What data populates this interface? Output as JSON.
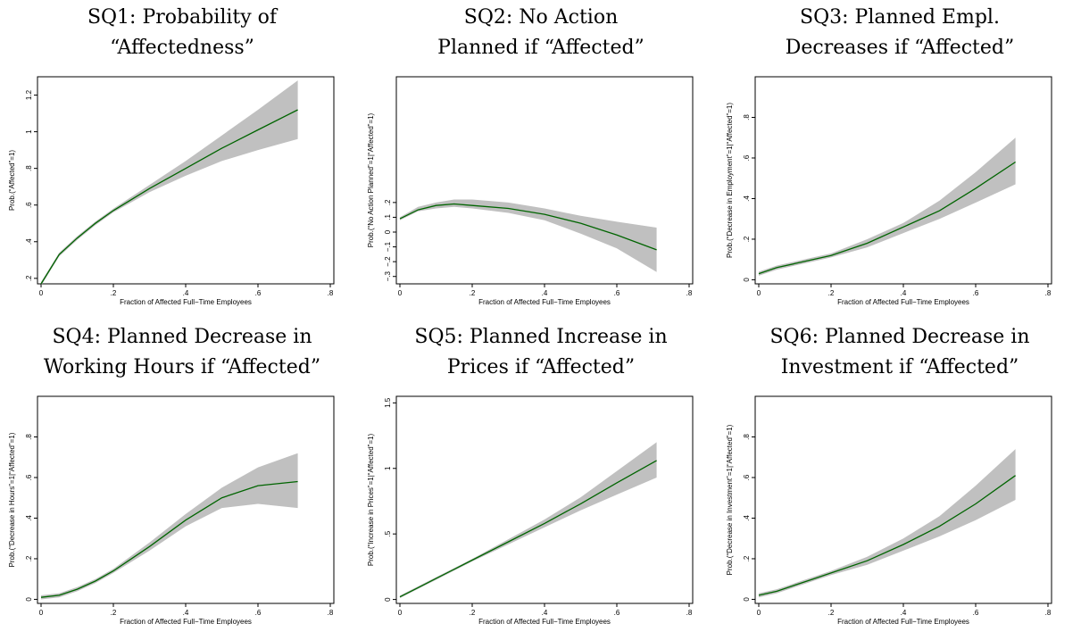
{
  "chart_data": [
    {
      "type": "line",
      "title_line1": "SQ1: Probability of",
      "title_line2": "“Affectedness”",
      "xlabel": "Fraction of Affected Full−Time Employees",
      "ylabel": "Prob.(“Affected”=1)",
      "xlim": [
        0,
        0.8
      ],
      "ylim": [
        0.17,
        1.3
      ],
      "xticks": [
        0,
        0.2,
        0.4,
        0.6,
        0.8
      ],
      "xtick_labels": [
        "0",
        ".2",
        ".4",
        ".6",
        ".8"
      ],
      "yticks": [
        0.2,
        0.4,
        0.6,
        0.8,
        1,
        1.2
      ],
      "ytick_labels": [
        ".2",
        ".4",
        ".6",
        ".8",
        "1",
        "1.2"
      ],
      "x": [
        0,
        0.05,
        0.1,
        0.15,
        0.2,
        0.3,
        0.4,
        0.5,
        0.6,
        0.71
      ],
      "y": [
        0.17,
        0.33,
        0.42,
        0.5,
        0.57,
        0.69,
        0.8,
        0.91,
        1.01,
        1.12
      ],
      "ci_low": [
        0.16,
        0.32,
        0.41,
        0.49,
        0.56,
        0.67,
        0.76,
        0.84,
        0.9,
        0.96
      ],
      "ci_high": [
        0.18,
        0.34,
        0.43,
        0.51,
        0.58,
        0.71,
        0.84,
        0.98,
        1.12,
        1.28
      ],
      "line_color": "#006400",
      "band_color": "#c0c0c0"
    },
    {
      "type": "line",
      "title_line1": "SQ2: No Action",
      "title_line2": "Planned if “Affected”",
      "xlabel": "Fraction of Affected Full−Time Employees",
      "ylabel": "Prob.(“No Action Planned”=1|“Affected”=1)",
      "xlim": [
        0,
        0.8
      ],
      "ylim": [
        -0.35,
        1.05
      ],
      "xticks": [
        0,
        0.2,
        0.4,
        0.6,
        0.8
      ],
      "xtick_labels": [
        "0",
        ".2",
        ".4",
        ".6",
        ".8"
      ],
      "yticks": [
        -0.3,
        -0.2,
        -0.1,
        0,
        0.1,
        0.2
      ],
      "ytick_labels": [
        "−.3",
        "−.2",
        "−.1",
        "0",
        ".1",
        ".2"
      ],
      "x": [
        0,
        0.05,
        0.1,
        0.15,
        0.2,
        0.3,
        0.4,
        0.5,
        0.6,
        0.71
      ],
      "y": [
        0.09,
        0.15,
        0.18,
        0.19,
        0.18,
        0.16,
        0.12,
        0.06,
        -0.02,
        -0.12
      ],
      "ci_low": [
        0.08,
        0.14,
        0.16,
        0.17,
        0.16,
        0.13,
        0.08,
        -0.01,
        -0.11,
        -0.27
      ],
      "ci_high": [
        0.1,
        0.17,
        0.2,
        0.22,
        0.22,
        0.2,
        0.16,
        0.11,
        0.07,
        0.03
      ],
      "line_color": "#006400",
      "band_color": "#c0c0c0"
    },
    {
      "type": "line",
      "title_line1": "SQ3: Planned Empl.",
      "title_line2": "Decreases if “Affected”",
      "xlabel": "Fraction of Affected Full−Time Employees",
      "ylabel": "Prob.(“Decrease in Employment”=1|“Affected”=1)",
      "xlim": [
        0,
        0.8
      ],
      "ylim": [
        -0.02,
        1.0
      ],
      "xticks": [
        0,
        0.2,
        0.4,
        0.6,
        0.8
      ],
      "xtick_labels": [
        "0",
        ".2",
        ".4",
        ".6",
        ".8"
      ],
      "yticks": [
        0,
        0.2,
        0.4,
        0.6,
        0.8
      ],
      "ytick_labels": [
        "0",
        ".2",
        ".4",
        ".6",
        ".8"
      ],
      "x": [
        0,
        0.05,
        0.1,
        0.15,
        0.2,
        0.3,
        0.4,
        0.5,
        0.6,
        0.71
      ],
      "y": [
        0.03,
        0.06,
        0.08,
        0.1,
        0.12,
        0.18,
        0.26,
        0.34,
        0.45,
        0.58
      ],
      "ci_low": [
        0.02,
        0.05,
        0.07,
        0.09,
        0.11,
        0.16,
        0.23,
        0.3,
        0.38,
        0.47
      ],
      "ci_high": [
        0.04,
        0.07,
        0.09,
        0.11,
        0.13,
        0.2,
        0.28,
        0.39,
        0.53,
        0.7
      ],
      "line_color": "#006400",
      "band_color": "#c0c0c0"
    },
    {
      "type": "line",
      "title_line1": "SQ4: Planned Decrease in",
      "title_line2": "Working Hours if “Affected”",
      "xlabel": "Fraction of Affected Full−Time Employees",
      "ylabel": "Prob.(“Decrease in Hours”=1|“Affected”=1)",
      "xlim": [
        0,
        0.8
      ],
      "ylim": [
        -0.02,
        1.0
      ],
      "xticks": [
        0,
        0.2,
        0.4,
        0.6,
        0.8
      ],
      "xtick_labels": [
        "0",
        ".2",
        ".4",
        ".6",
        ".8"
      ],
      "yticks": [
        0,
        0.2,
        0.4,
        0.6,
        0.8
      ],
      "ytick_labels": [
        "0",
        ".2",
        ".4",
        ".6",
        ".8"
      ],
      "x": [
        0,
        0.05,
        0.1,
        0.15,
        0.2,
        0.3,
        0.4,
        0.5,
        0.6,
        0.71
      ],
      "y": [
        0.01,
        0.02,
        0.05,
        0.09,
        0.14,
        0.26,
        0.39,
        0.5,
        0.56,
        0.58
      ],
      "ci_low": [
        0.0,
        0.01,
        0.04,
        0.08,
        0.13,
        0.24,
        0.36,
        0.45,
        0.47,
        0.45
      ],
      "ci_high": [
        0.02,
        0.03,
        0.06,
        0.1,
        0.15,
        0.28,
        0.42,
        0.55,
        0.65,
        0.72
      ],
      "line_color": "#006400",
      "band_color": "#c0c0c0"
    },
    {
      "type": "line",
      "title_line1": "SQ5: Planned Increase in",
      "title_line2": "Prices if “Affected”",
      "xlabel": "Fraction of Affected Full−Time Employees",
      "ylabel": "Prob.(“Increase in Prices”=1|“Affected”=1)",
      "xlim": [
        0,
        0.8
      ],
      "ylim": [
        -0.03,
        1.55
      ],
      "xticks": [
        0,
        0.2,
        0.4,
        0.6,
        0.8
      ],
      "xtick_labels": [
        "0",
        ".2",
        ".4",
        ".6",
        ".8"
      ],
      "yticks": [
        0,
        0.5,
        1,
        1.5
      ],
      "ytick_labels": [
        "0",
        ".5",
        "1",
        "1.5"
      ],
      "x": [
        0,
        0.05,
        0.1,
        0.15,
        0.2,
        0.3,
        0.4,
        0.5,
        0.6,
        0.71
      ],
      "y": [
        0.02,
        0.09,
        0.16,
        0.23,
        0.3,
        0.44,
        0.58,
        0.73,
        0.89,
        1.06
      ],
      "ci_low": [
        0.01,
        0.08,
        0.15,
        0.22,
        0.29,
        0.42,
        0.55,
        0.68,
        0.8,
        0.93
      ],
      "ci_high": [
        0.03,
        0.1,
        0.17,
        0.24,
        0.31,
        0.46,
        0.61,
        0.78,
        0.98,
        1.2
      ],
      "line_color": "#006400",
      "band_color": "#c0c0c0"
    },
    {
      "type": "line",
      "title_line1": "SQ6: Planned Decrease in",
      "title_line2": "Investment if “Affected”",
      "xlabel": "Fraction of Affected Full−Time Employees",
      "ylabel": "Prob.(“Decrease in Investment”=1|“Affected”=1)",
      "xlim": [
        0,
        0.8
      ],
      "ylim": [
        -0.02,
        1.0
      ],
      "xticks": [
        0,
        0.2,
        0.4,
        0.6,
        0.8
      ],
      "xtick_labels": [
        "0",
        ".2",
        ".4",
        ".6",
        ".8"
      ],
      "yticks": [
        0,
        0.2,
        0.4,
        0.6,
        0.8
      ],
      "ytick_labels": [
        "0",
        ".2",
        ".4",
        ".6",
        ".8"
      ],
      "x": [
        0,
        0.05,
        0.1,
        0.15,
        0.2,
        0.3,
        0.4,
        0.5,
        0.6,
        0.71
      ],
      "y": [
        0.02,
        0.04,
        0.07,
        0.1,
        0.13,
        0.19,
        0.27,
        0.36,
        0.47,
        0.61
      ],
      "ci_low": [
        0.01,
        0.03,
        0.06,
        0.09,
        0.12,
        0.17,
        0.24,
        0.31,
        0.39,
        0.49
      ],
      "ci_high": [
        0.03,
        0.05,
        0.08,
        0.11,
        0.14,
        0.21,
        0.3,
        0.41,
        0.56,
        0.74
      ],
      "line_color": "#006400",
      "band_color": "#c0c0c0"
    }
  ]
}
